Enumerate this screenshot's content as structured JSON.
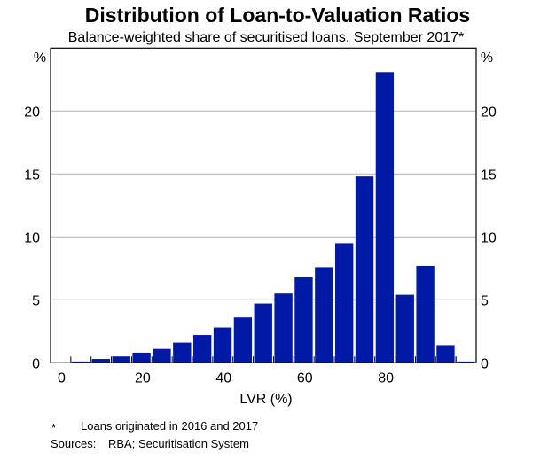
{
  "chart_data": {
    "type": "bar",
    "title": "Distribution of Loan-to-Valuation Ratios",
    "subtitle": "Balance-weighted share of securitised loans, September 2017*",
    "xlabel": "LVR (%)",
    "ylabel_left": "%",
    "ylabel_right": "%",
    "x": [
      5,
      10,
      15,
      20,
      25,
      30,
      35,
      40,
      45,
      50,
      55,
      60,
      65,
      70,
      75,
      80,
      85,
      90,
      95,
      100
    ],
    "values": [
      0.1,
      0.3,
      0.5,
      0.8,
      1.1,
      1.6,
      2.2,
      2.8,
      3.6,
      4.7,
      5.5,
      6.8,
      7.6,
      9.5,
      14.8,
      23.1,
      5.4,
      7.7,
      1.4,
      0.1
    ],
    "xlim": [
      -2.5,
      102.5
    ],
    "ylim": [
      0,
      25
    ],
    "xticks": [
      0,
      20,
      40,
      60,
      80
    ],
    "yticks": [
      0,
      5,
      10,
      15,
      20
    ],
    "grid": true,
    "bar_color": "#001aa6",
    "grid_color": "#b3b3b3",
    "notes": {
      "footnote_marker": "*",
      "footnote": "Loans originated in 2016 and 2017",
      "sources_label": "Sources:",
      "sources": "RBA; Securitisation System"
    }
  }
}
